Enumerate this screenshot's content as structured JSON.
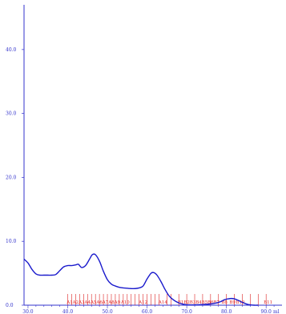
{
  "chart_data": {
    "type": "line",
    "title": "",
    "xlabel": "ml",
    "ylabel": "",
    "xlim": [
      29.0,
      94.0
    ],
    "ylim": [
      0.0,
      47.0
    ],
    "x_ticks": [
      "30.0",
      "40.0",
      "50.0",
      "60.0",
      "70.0",
      "80.0",
      "90.0"
    ],
    "y_ticks": [
      "0.0",
      "10.0",
      "20.0",
      "30.0",
      "40.0"
    ],
    "grid": false,
    "legend": "none",
    "series": [
      {
        "color": "#1a1acc",
        "x": [
          29.0,
          30.0,
          31.0,
          32.0,
          33.0,
          34.0,
          35.0,
          36.0,
          37.0,
          38.0,
          39.0,
          40.0,
          41.0,
          42.0,
          42.7,
          43.5,
          44.5,
          45.5,
          46.2,
          47.0,
          48.0,
          49.0,
          50.0,
          51.0,
          52.0,
          53.0,
          54.0,
          55.0,
          56.0,
          57.0,
          58.0,
          59.0,
          60.0,
          61.0,
          61.7,
          62.5,
          63.5,
          64.5,
          65.5,
          66.5,
          67.5,
          68.5,
          69.5,
          70.5,
          72.0,
          74.0,
          76.0,
          77.5,
          78.5,
          79.5,
          80.5,
          81.2,
          82.0,
          83.0,
          84.0,
          85.0,
          86.0,
          87.0,
          88.0
        ],
        "y": [
          7.2,
          6.6,
          5.6,
          4.9,
          4.7,
          4.7,
          4.7,
          4.7,
          4.8,
          5.4,
          6.0,
          6.2,
          6.2,
          6.3,
          6.4,
          5.9,
          6.2,
          7.2,
          7.9,
          7.9,
          6.9,
          5.3,
          4.0,
          3.3,
          3.0,
          2.8,
          2.7,
          2.65,
          2.6,
          2.6,
          2.7,
          3.0,
          4.1,
          5.0,
          5.1,
          4.7,
          3.7,
          2.5,
          1.5,
          0.9,
          0.5,
          0.25,
          0.1,
          0.05,
          0.05,
          0.1,
          0.2,
          0.35,
          0.55,
          0.85,
          1.0,
          1.05,
          1.0,
          0.75,
          0.45,
          0.2,
          0.05,
          0.0,
          0.0
        ]
      }
    ],
    "fraction_markers": {
      "color": "#dd2222",
      "boundaries": [
        40.0,
        41.0,
        42.0,
        43.0,
        44.0,
        45.0,
        46.0,
        47.0,
        48.0,
        49.0,
        50.0,
        51.0,
        52.0,
        53.0,
        54.0,
        55.0,
        56.0,
        57.0,
        58.0,
        59.0,
        60.0,
        61.0,
        62.0,
        63.0,
        65.0,
        66.0,
        68.0,
        70.0,
        72.0,
        74.0,
        76.0,
        78.0,
        80.0,
        82.0,
        84.0,
        86.0,
        88.0,
        90.0
      ],
      "labels": [
        {
          "text": "A1",
          "x": 40.5
        },
        {
          "text": "A2",
          "x": 42.0
        },
        {
          "text": "A3",
          "x": 43.5
        },
        {
          "text": "A4",
          "x": 45.0
        },
        {
          "text": "A5",
          "x": 46.5
        },
        {
          "text": "A6",
          "x": 48.0
        },
        {
          "text": "A7",
          "x": 49.5
        },
        {
          "text": "A8",
          "x": 51.0
        },
        {
          "text": "A9",
          "x": 52.5
        },
        {
          "text": "A10",
          "x": 54.5
        },
        {
          "text": "A12",
          "x": 59.0
        },
        {
          "text": "A14",
          "x": 64.0
        },
        {
          "text": "B1",
          "x": 68.5
        },
        {
          "text": "B2",
          "x": 70.0
        },
        {
          "text": "B3",
          "x": 71.5
        },
        {
          "text": "B4",
          "x": 73.0
        },
        {
          "text": "B5",
          "x": 74.5
        },
        {
          "text": "B6",
          "x": 76.0
        },
        {
          "text": "B7",
          "x": 77.5
        },
        {
          "text": "B8",
          "x": 79.5
        },
        {
          "text": "B9",
          "x": 81.5
        },
        {
          "text": "B10",
          "x": 83.5
        },
        {
          "text": "B11",
          "x": 90.5
        }
      ]
    }
  }
}
